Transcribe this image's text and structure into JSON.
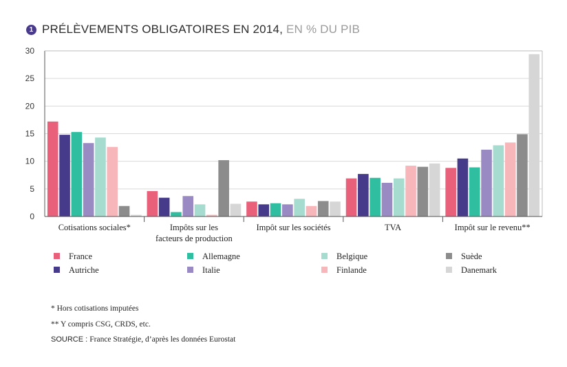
{
  "header": {
    "number": "1",
    "title_main": "PRÉLÈVEMENTS OBLIGATOIRES EN 2014,",
    "title_unit": " EN % DU PIB"
  },
  "chart_data": {
    "type": "bar",
    "title": "PRÉLÈVEMENTS OBLIGATOIRES EN 2014, EN % DU PIB",
    "xlabel": "",
    "ylabel": "",
    "ylim": [
      0,
      30
    ],
    "yticks": [
      "0",
      "5",
      "10",
      "15",
      "20",
      "25",
      "30"
    ],
    "grid": true,
    "legend_position": "bottom",
    "categories": [
      [
        "Cotisations sociales*"
      ],
      [
        "Impôts sur les",
        "facteurs de production"
      ],
      [
        "Impôt sur les sociétés"
      ],
      [
        "TVA"
      ],
      [
        "Impôt sur le revenu**"
      ]
    ],
    "series": [
      {
        "name": "France",
        "color": "#e8607a",
        "values": [
          17.2,
          4.6,
          2.7,
          6.9,
          8.8
        ]
      },
      {
        "name": "Autriche",
        "color": "#463a8a",
        "values": [
          14.8,
          3.4,
          2.2,
          7.7,
          10.5
        ]
      },
      {
        "name": "Allemagne",
        "color": "#2fbea0",
        "values": [
          15.3,
          0.8,
          2.4,
          7.0,
          8.9
        ]
      },
      {
        "name": "Italie",
        "color": "#9a8ac4",
        "values": [
          13.3,
          3.7,
          2.2,
          6.1,
          12.1
        ]
      },
      {
        "name": "Belgique",
        "color": "#a6dcd0",
        "values": [
          14.3,
          2.2,
          3.2,
          6.9,
          12.9
        ]
      },
      {
        "name": "Finlande",
        "color": "#f6b6ba",
        "values": [
          12.6,
          0.3,
          1.9,
          9.2,
          13.4
        ]
      },
      {
        "name": "Suède",
        "color": "#8c8c8c",
        "values": [
          1.9,
          10.2,
          2.8,
          9.0,
          14.9
        ]
      },
      {
        "name": "Danemark",
        "color": "#d6d6d6",
        "values": [
          0.3,
          2.3,
          2.7,
          9.6,
          29.4
        ]
      }
    ]
  },
  "notes": {
    "note1": "* Hors cotisations imputées",
    "note2": "** Y compris CSG, CRDS, etc.",
    "source_label": "SOURCE : ",
    "source_text": "France Stratégie, d’après les données Eurostat"
  }
}
